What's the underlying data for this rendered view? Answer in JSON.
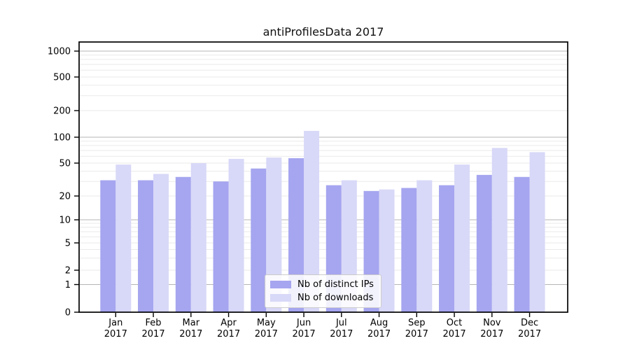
{
  "chart_data": {
    "type": "bar",
    "title": "antiProfilesData 2017",
    "categories": [
      "Jan",
      "Feb",
      "Mar",
      "Apr",
      "May",
      "Jun",
      "Jul",
      "Aug",
      "Sep",
      "Oct",
      "Nov",
      "Dec"
    ],
    "x_year": "2017",
    "series": [
      {
        "name": "Nb of distinct IPs",
        "color": "#a5a5f0",
        "values": [
          31,
          31,
          34,
          30,
          43,
          57,
          27,
          23,
          25,
          27,
          36,
          34
        ]
      },
      {
        "name": "Nb of downloads",
        "color": "#d8d8f8",
        "values": [
          48,
          37,
          50,
          56,
          58,
          118,
          31,
          24,
          31,
          48,
          75,
          67
        ]
      }
    ],
    "yscale": "symlog",
    "yticks": [
      0,
      1,
      2,
      5,
      10,
      20,
      50,
      100,
      200,
      500,
      1000
    ],
    "ylim": [
      0,
      1280
    ],
    "grid": true,
    "legend_position": "lower center"
  }
}
